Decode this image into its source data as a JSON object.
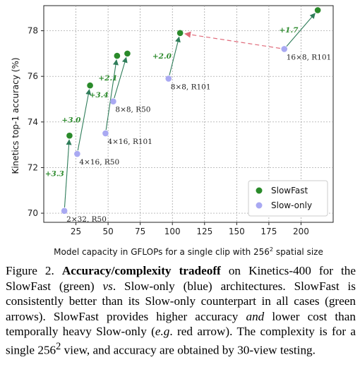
{
  "chart_data": {
    "type": "scatter",
    "xlabel_main": "Model capacity in GFLOPs for a single clip with 256",
    "xlabel_sup": "2",
    "xlabel_tail": " spatial size",
    "ylabel": "Kinetics top-1 accuracy (%)",
    "xlim": [
      0,
      225
    ],
    "ylim": [
      69.6,
      79.1
    ],
    "xticks": [
      "25",
      "50",
      "75",
      "100",
      "125",
      "150",
      "175",
      "200"
    ],
    "xtick_values": [
      25,
      50,
      75,
      100,
      125,
      150,
      175,
      200
    ],
    "yticks": [
      "70",
      "72",
      "74",
      "76",
      "78"
    ],
    "ytick_values": [
      70,
      72,
      74,
      76,
      78
    ],
    "grid": true,
    "legend_position": "lower-right",
    "series": [
      {
        "name": "SlowFast",
        "color": "#2a8a2a",
        "points": [
          {
            "x": 20,
            "y": 73.4
          },
          {
            "x": 36,
            "y": 75.6
          },
          {
            "x": 57,
            "y": 76.9
          },
          {
            "x": 65,
            "y": 77.0
          },
          {
            "x": 106,
            "y": 77.9
          },
          {
            "x": 213,
            "y": 78.9
          }
        ]
      },
      {
        "name": "Slow-only",
        "color": "#a9a9f2",
        "points": [
          {
            "x": 16,
            "y": 70.1
          },
          {
            "x": 26,
            "y": 72.6
          },
          {
            "x": 48,
            "y": 73.5
          },
          {
            "x": 54,
            "y": 74.9
          },
          {
            "x": 97,
            "y": 75.9
          },
          {
            "x": 187,
            "y": 77.2
          }
        ]
      }
    ],
    "point_labels": [
      {
        "text": "2×32, R50",
        "x": 16,
        "y": 70.1
      },
      {
        "text": "4×16, R50",
        "x": 26,
        "y": 72.6
      },
      {
        "text": "4×16, R101",
        "x": 48,
        "y": 73.5
      },
      {
        "text": "8×8, R50",
        "x": 54,
        "y": 74.9
      },
      {
        "text": "8×8, R101",
        "x": 97,
        "y": 75.9
      },
      {
        "text": "16×8, R101",
        "x": 187,
        "y": 77.2
      }
    ],
    "green_arrows": [
      {
        "from": [
          16,
          70.1
        ],
        "to": [
          20,
          73.4
        ],
        "gain": "+3.3"
      },
      {
        "from": [
          26,
          72.6
        ],
        "to": [
          36,
          75.6
        ],
        "gain": "+3.0"
      },
      {
        "from": [
          48,
          73.5
        ],
        "to": [
          57,
          76.9
        ],
        "gain": "+3.4"
      },
      {
        "from": [
          54,
          74.9
        ],
        "to": [
          65,
          77.0
        ],
        "gain": "+2.1"
      },
      {
        "from": [
          97,
          75.9
        ],
        "to": [
          106,
          77.9
        ],
        "gain": "+2.0"
      },
      {
        "from": [
          187,
          77.2
        ],
        "to": [
          213,
          78.9
        ],
        "gain": "+1.7"
      }
    ],
    "red_arrow": {
      "from": [
        187,
        77.2
      ],
      "to": [
        106,
        77.9
      ]
    }
  },
  "caption": {
    "prefix": "Figure 2. ",
    "bold_title": "Accuracy/complexity tradeoff",
    "t1": " on Kinetics-400 for the SlowFast (green) ",
    "i1": "vs",
    "t2": ". Slow-only (blue) architectures. SlowFast is consistently better than its Slow-only counterpart in all cases (green arrows). SlowFast provides higher accuracy ",
    "i2": "and",
    "t3": " lower cost than temporally heavy Slow-only (",
    "i3": "e.g",
    "t4": ". red arrow). The complexity is for a single 256",
    "sup": "2",
    "t5": " view, and accuracy are obtained by 30-view testing."
  }
}
